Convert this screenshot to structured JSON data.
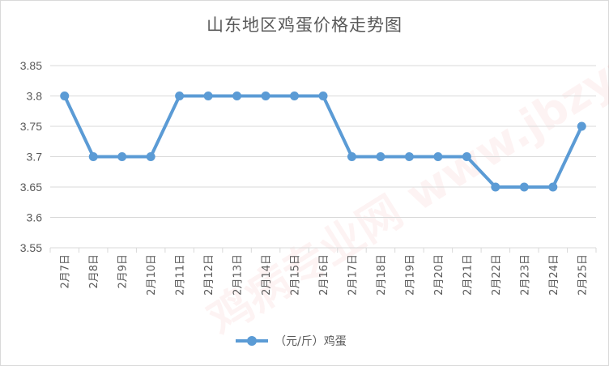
{
  "chart_data": {
    "type": "line",
    "title": "山东地区鸡蛋价格走势图",
    "xlabel": "",
    "ylabel": "",
    "categories": [
      "2月7日",
      "2月8日",
      "2月9日",
      "2月10日",
      "2月11日",
      "2月12日",
      "2月13日",
      "2月14日",
      "2月15日",
      "2月16日",
      "2月17日",
      "2月18日",
      "2月19日",
      "2月20日",
      "2月21日",
      "2月22日",
      "2月23日",
      "2月24日",
      "2月25日"
    ],
    "series": [
      {
        "name": "（元/斤）鸡蛋",
        "values": [
          3.8,
          3.7,
          3.7,
          3.7,
          3.8,
          3.8,
          3.8,
          3.8,
          3.8,
          3.8,
          3.7,
          3.7,
          3.7,
          3.7,
          3.7,
          3.65,
          3.65,
          3.65,
          3.75
        ]
      }
    ],
    "ylim": [
      3.55,
      3.85
    ],
    "yticks": [
      "3.55",
      "3.6",
      "3.65",
      "3.7",
      "3.75",
      "3.8",
      "3.85"
    ],
    "grid": true,
    "legend_position": "bottom",
    "colors": {
      "series": "#5b9bd5",
      "grid": "#d9d9d9",
      "text": "#595959"
    }
  },
  "watermark": {
    "text": "鸡病专业网 www.jbzyw.com"
  }
}
